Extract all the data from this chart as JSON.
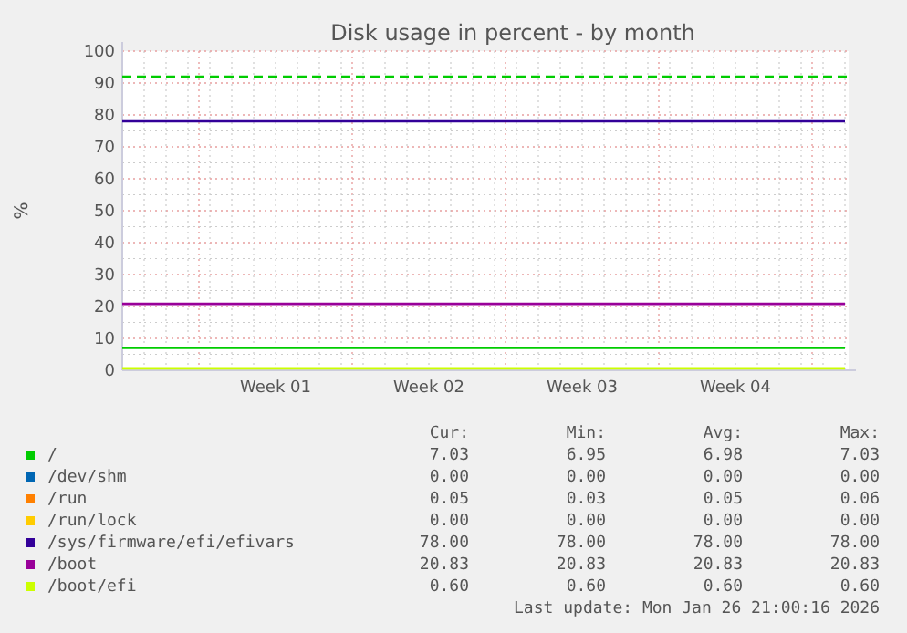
{
  "chart_data": {
    "type": "line",
    "title": "Disk usage in percent - by month",
    "ylabel": "%",
    "categories": [
      null,
      null,
      null,
      null,
      null,
      null,
      null,
      "Week 01",
      null,
      null,
      null,
      null,
      null,
      null,
      "Week 02",
      null,
      null,
      null,
      null,
      null,
      null,
      "Week 03",
      null,
      null,
      null,
      null,
      null,
      null,
      "Week 04",
      null,
      null,
      null,
      null,
      null
    ],
    "ylim": [
      0,
      100
    ],
    "yticks": [
      0,
      10,
      20,
      30,
      40,
      50,
      60,
      70,
      80,
      90,
      100
    ],
    "grid": true,
    "legend": "bottom",
    "line_style": "solid",
    "marker": "none",
    "series": [
      {
        "name": "/",
        "color": "#00cc00",
        "values": [
          7.03,
          7.03,
          7.03,
          7.03,
          7.03,
          7.03,
          7.03,
          7.03,
          7.03,
          7.03,
          7.03,
          7.03,
          7.03,
          7.03,
          7.03,
          7.03,
          7.03,
          7.03,
          7.03,
          7.03,
          7.03,
          7.03,
          7.03,
          7.03,
          7.03,
          7.03,
          7.03,
          7.03,
          7.03,
          7.03,
          7.03,
          7.03,
          7.03,
          7.03
        ]
      },
      {
        "name": "/dev/shm",
        "color": "#0066b3",
        "values": [
          null,
          null,
          null,
          null,
          null,
          null,
          null,
          null,
          null,
          null,
          null,
          null,
          null,
          null,
          null,
          null,
          null,
          null,
          null,
          null,
          null,
          null,
          null,
          null,
          null,
          null,
          null,
          null,
          null,
          null,
          null,
          null,
          null,
          null
        ]
      },
      {
        "name": "/run",
        "color": "#ff8000",
        "values": [
          null,
          null,
          null,
          null,
          null,
          null,
          null,
          null,
          null,
          null,
          null,
          null,
          null,
          null,
          null,
          null,
          null,
          null,
          null,
          null,
          null,
          null,
          null,
          null,
          null,
          null,
          null,
          null,
          null,
          null,
          null,
          null,
          null,
          null
        ]
      },
      {
        "name": "/run/lock",
        "color": "#ffcc00",
        "values": [
          null,
          null,
          null,
          null,
          null,
          null,
          null,
          null,
          null,
          null,
          null,
          null,
          null,
          null,
          null,
          null,
          null,
          null,
          null,
          null,
          null,
          null,
          null,
          null,
          null,
          null,
          null,
          null,
          null,
          null,
          null,
          null,
          null,
          null
        ]
      },
      {
        "name": "/sys/firmware/efi/efivars",
        "color": "#330099",
        "values": [
          78,
          78,
          78,
          78,
          78,
          78,
          78,
          78,
          78,
          78,
          78,
          78,
          78,
          78,
          78,
          78,
          78,
          78,
          78,
          78,
          78,
          78,
          78,
          78,
          78,
          78,
          78,
          78,
          78,
          78,
          78,
          78,
          78,
          78
        ]
      },
      {
        "name": "/boot",
        "color": "#990099",
        "values": [
          20.83,
          20.83,
          20.83,
          20.83,
          20.83,
          20.83,
          20.83,
          20.83,
          20.83,
          20.83,
          20.83,
          20.83,
          20.83,
          20.83,
          20.83,
          20.83,
          20.83,
          20.83,
          20.83,
          20.83,
          20.83,
          20.83,
          20.83,
          20.83,
          20.83,
          20.83,
          20.83,
          20.83,
          20.83,
          20.83,
          20.83,
          20.83,
          20.83,
          20.83
        ]
      },
      {
        "name": "/boot/efi",
        "color": "#ccff00",
        "values": [
          0.6,
          0.6,
          0.6,
          0.6,
          0.6,
          0.6,
          0.6,
          0.6,
          0.6,
          0.6,
          0.6,
          0.6,
          0.6,
          0.6,
          0.6,
          0.6,
          0.6,
          0.6,
          0.6,
          0.6,
          0.6,
          0.6,
          0.6,
          0.6,
          0.6,
          0.6,
          0.6,
          0.6,
          0.6,
          0.6,
          0.6,
          0.6,
          0.6,
          0.6
        ]
      }
    ],
    "ref_lines": [
      {
        "axis": "y",
        "value": 92,
        "color": "#00cc00",
        "line_style": "dashed"
      }
    ],
    "annotations": [
      "Cur:",
      "Min:",
      "Avg:",
      "Max:",
      "7.03",
      "6.95",
      "6.98",
      "7.03",
      "0.00",
      "0.00",
      "0.00",
      "0.00",
      "0.05",
      "0.03",
      "0.05",
      "0.06",
      "0.00",
      "0.00",
      "0.00",
      "0.00",
      "78.00",
      "78.00",
      "78.00",
      "78.00",
      "20.83",
      "20.83",
      "20.83",
      "20.83",
      "0.60",
      "0.60",
      "0.60",
      "0.60",
      "Last update: Mon Jan 26 21:00:16 2026"
    ]
  }
}
